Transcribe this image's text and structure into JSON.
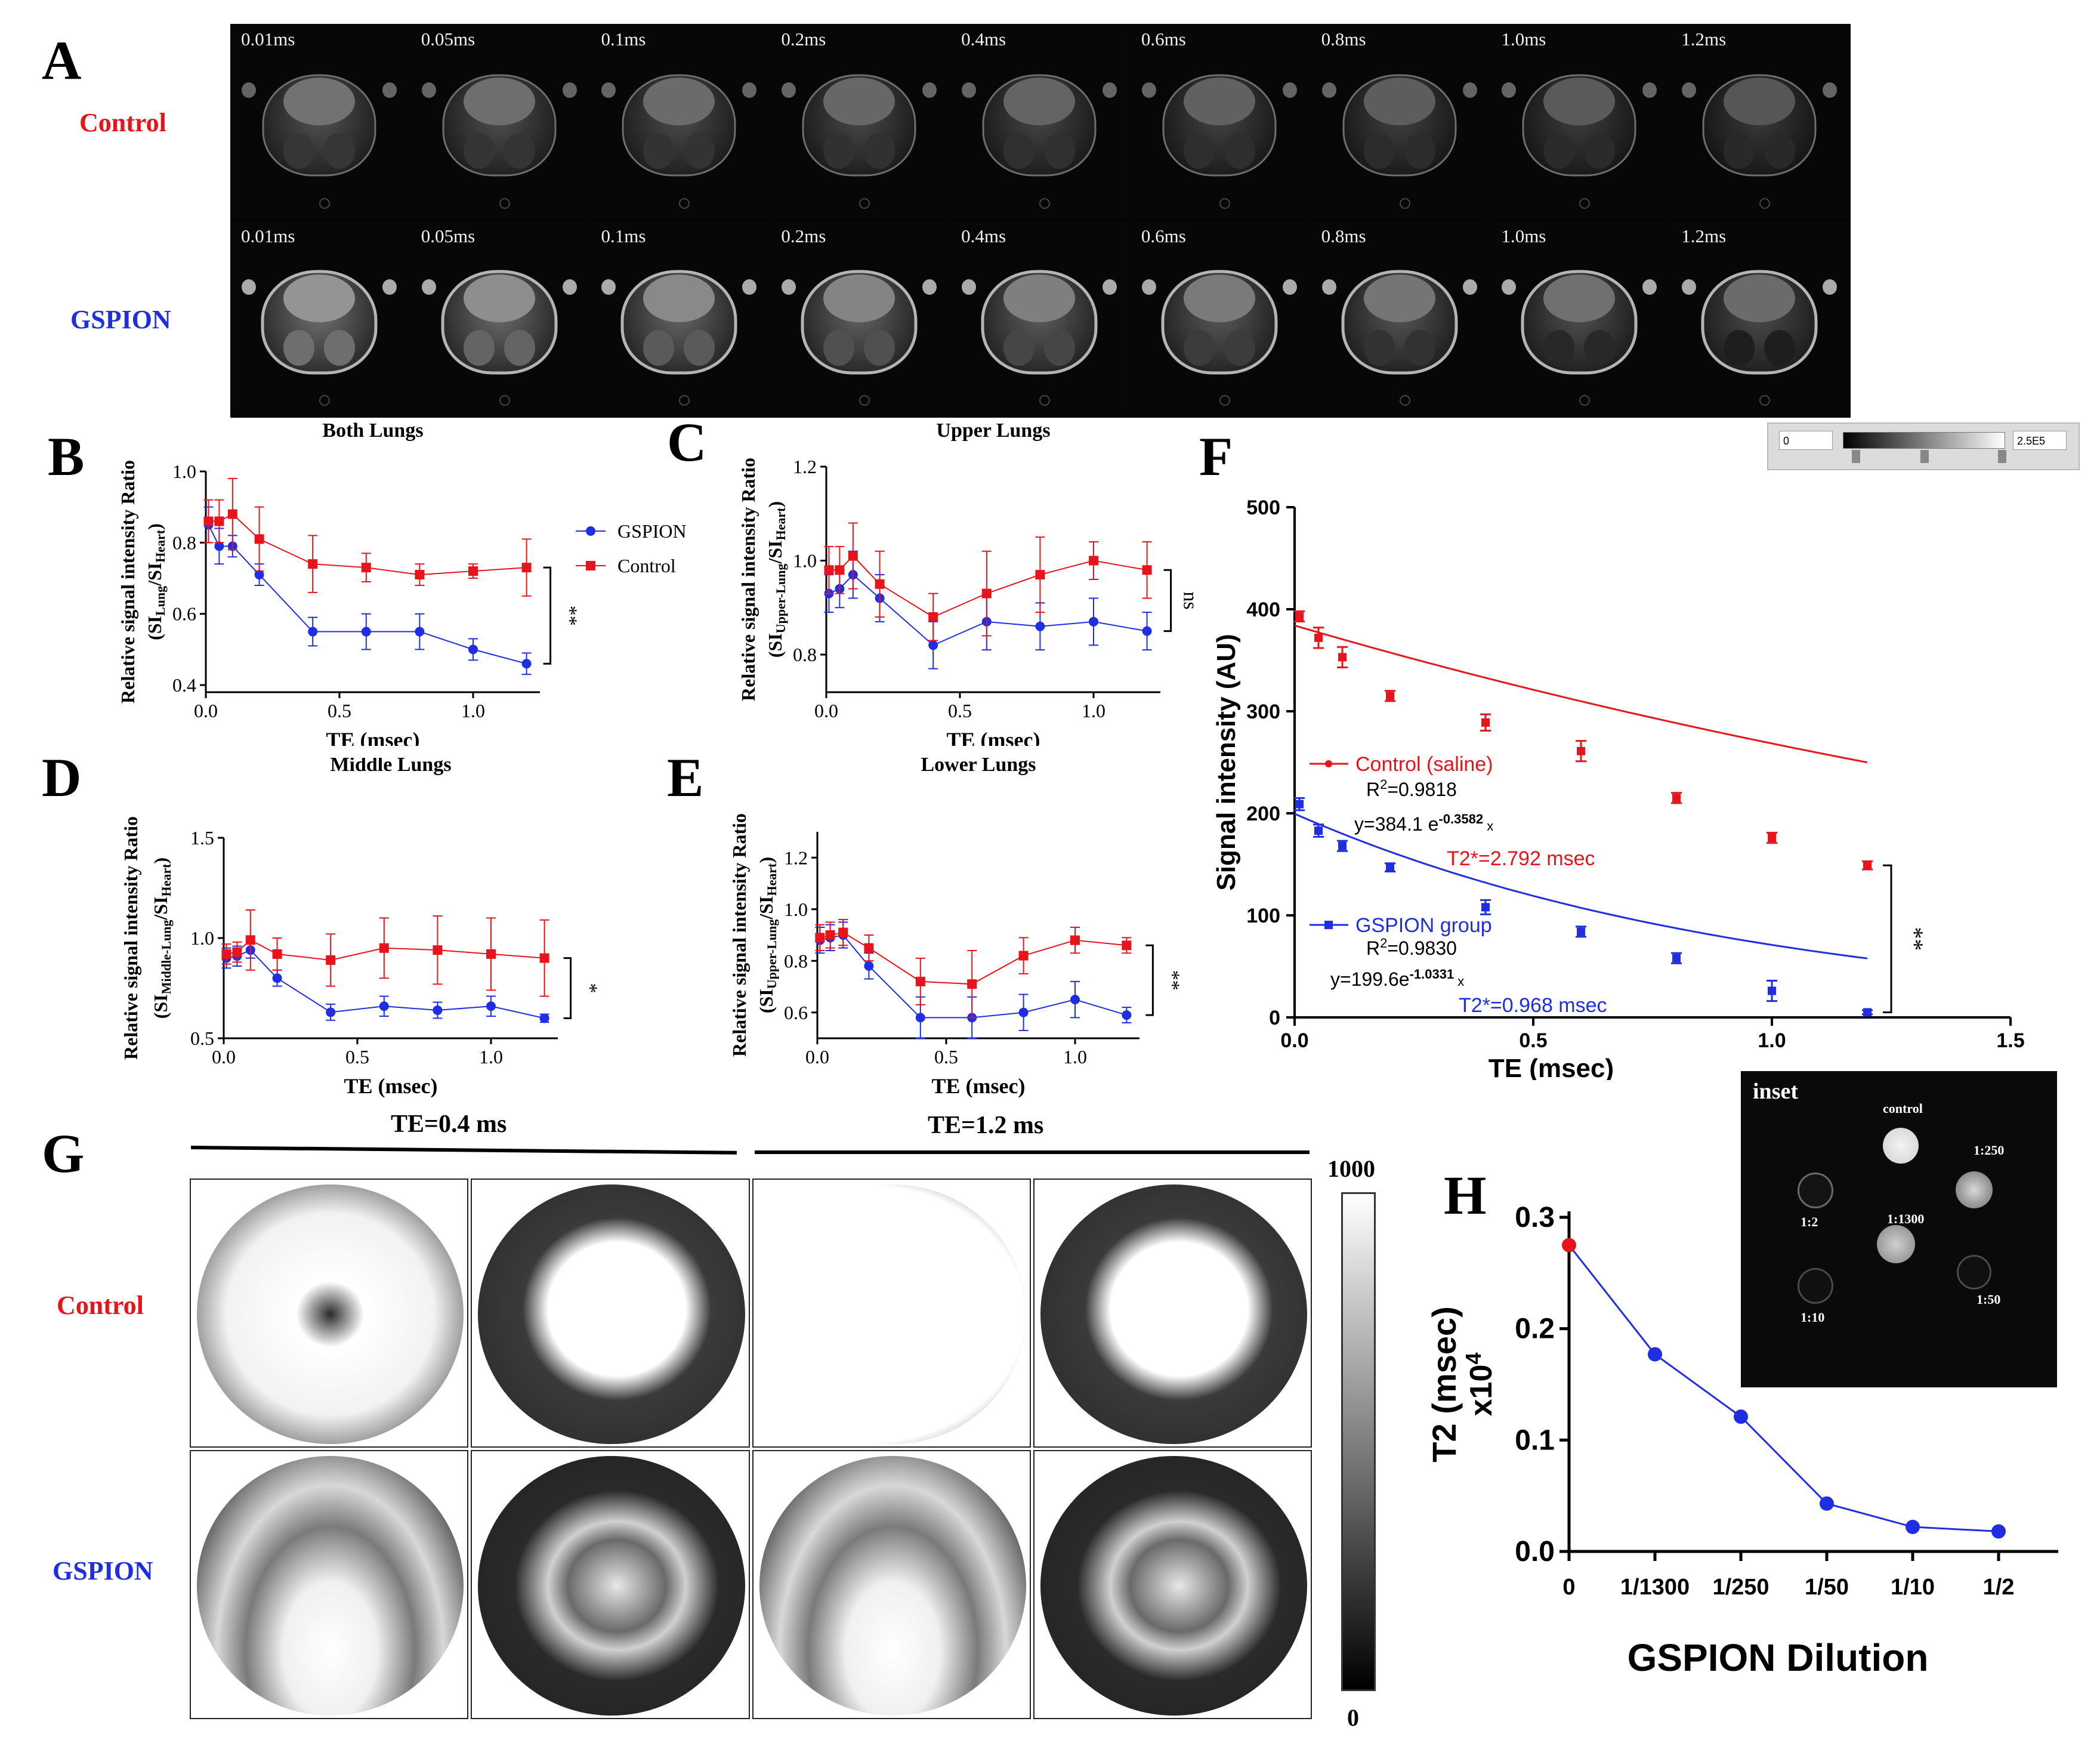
{
  "panel_letters": {
    "A": "A",
    "B": "B",
    "C": "C",
    "D": "D",
    "E": "E",
    "F": "F",
    "G": "G",
    "H": "H"
  },
  "panelA": {
    "row_labels": [
      "Control",
      "GSPION"
    ],
    "row_label_colors": [
      "#e8141c",
      "#1f2ee0"
    ],
    "te_labels": [
      "0.01ms",
      "0.05ms",
      "0.1ms",
      "0.2ms",
      "0.4ms",
      "0.6ms",
      "0.8ms",
      "1.0ms",
      "1.2ms"
    ]
  },
  "colorbar_A": {
    "min": "0",
    "max": "2.5E5"
  },
  "chart_data": [
    {
      "id": "B",
      "type": "line",
      "title": "Both Lungs",
      "xlabel": "TE (msec)",
      "ylabel_main": "Relative signal intensity Ratio",
      "ylabel_sub": "(SI",
      "ylabel_sub1": "Lung",
      "ylabel_mid": "/SI",
      "ylabel_sub2": "Heart",
      "ylabel_end": ")",
      "xlim": [
        0,
        1.25
      ],
      "ylim": [
        0.38,
        1.0
      ],
      "xticks": [
        "0.0",
        "0.5",
        "1.0"
      ],
      "yticks": [
        "0.4",
        "0.6",
        "0.8",
        "1.0"
      ],
      "x": [
        0.01,
        0.05,
        0.1,
        0.2,
        0.4,
        0.6,
        0.8,
        1.0,
        1.2
      ],
      "series": [
        {
          "name": "GSPION",
          "color": "#1f2ee0",
          "marker": "circle",
          "values": [
            0.85,
            0.79,
            0.79,
            0.71,
            0.55,
            0.55,
            0.55,
            0.5,
            0.46
          ],
          "err": [
            0.05,
            0.05,
            0.03,
            0.03,
            0.04,
            0.05,
            0.05,
            0.03,
            0.03
          ]
        },
        {
          "name": "Control",
          "color": "#e8141c",
          "marker": "square",
          "values": [
            0.86,
            0.86,
            0.88,
            0.81,
            0.74,
            0.73,
            0.71,
            0.72,
            0.73
          ],
          "err": [
            0.06,
            0.06,
            0.1,
            0.09,
            0.08,
            0.04,
            0.03,
            0.02,
            0.08
          ]
        }
      ],
      "significance": "**",
      "legend": [
        "GSPION",
        "Control"
      ]
    },
    {
      "id": "C",
      "type": "line",
      "title": "Upper Lungs",
      "xlabel": "TE (msec)",
      "ylabel_main": "Relative signal intensity Ratio",
      "ylabel_sub": "(SI",
      "ylabel_sub1": "Upper-Lung",
      "ylabel_mid": "/SI",
      "ylabel_sub2": "Heart",
      "ylabel_end": ")",
      "xlim": [
        0,
        1.25
      ],
      "ylim": [
        0.72,
        1.2
      ],
      "xticks": [
        "0.0",
        "0.5",
        "1.0"
      ],
      "yticks": [
        "0.8",
        "1.0",
        "1.2"
      ],
      "x": [
        0.01,
        0.05,
        0.1,
        0.2,
        0.4,
        0.6,
        0.8,
        1.0,
        1.2
      ],
      "series": [
        {
          "name": "GSPION",
          "color": "#1f2ee0",
          "marker": "circle",
          "values": [
            0.93,
            0.94,
            0.97,
            0.92,
            0.82,
            0.87,
            0.86,
            0.87,
            0.85
          ],
          "err": [
            0.04,
            0.04,
            0.05,
            0.05,
            0.05,
            0.06,
            0.05,
            0.05,
            0.04
          ]
        },
        {
          "name": "Control",
          "color": "#e8141c",
          "marker": "square",
          "values": [
            0.98,
            0.98,
            1.01,
            0.95,
            0.88,
            0.93,
            0.97,
            1.0,
            0.98
          ],
          "err": [
            0.05,
            0.05,
            0.07,
            0.07,
            0.05,
            0.09,
            0.08,
            0.04,
            0.06
          ]
        }
      ],
      "significance": "ns"
    },
    {
      "id": "D",
      "type": "line",
      "title": "Middle Lungs",
      "xlabel": "TE (msec)",
      "ylabel_main": "Relative signal intensity Ratio",
      "ylabel_sub": "(SI",
      "ylabel_sub1": "Middle-Lung",
      "ylabel_mid": "/SI",
      "ylabel_sub2": "Heart",
      "ylabel_end": ")",
      "xlim": [
        0,
        1.25
      ],
      "ylim": [
        0.5,
        1.5
      ],
      "xticks": [
        "0.0",
        "0.5",
        "1.0"
      ],
      "yticks": [
        "0.5",
        "1.0",
        "1.5"
      ],
      "x": [
        0.01,
        0.05,
        0.1,
        0.2,
        0.4,
        0.6,
        0.8,
        1.0,
        1.2
      ],
      "series": [
        {
          "name": "GSPION",
          "color": "#1f2ee0",
          "marker": "circle",
          "values": [
            0.9,
            0.91,
            0.94,
            0.8,
            0.63,
            0.66,
            0.64,
            0.66,
            0.6
          ],
          "err": [
            0.05,
            0.05,
            0.04,
            0.04,
            0.04,
            0.05,
            0.04,
            0.05,
            0.02
          ]
        },
        {
          "name": "Control",
          "color": "#e8141c",
          "marker": "square",
          "values": [
            0.92,
            0.93,
            0.99,
            0.92,
            0.89,
            0.95,
            0.94,
            0.92,
            0.9
          ],
          "err": [
            0.05,
            0.05,
            0.15,
            0.08,
            0.13,
            0.15,
            0.17,
            0.18,
            0.19
          ]
        }
      ],
      "significance": "*"
    },
    {
      "id": "E",
      "type": "line",
      "title": "Lower Lungs",
      "xlabel": "TE (msec)",
      "ylabel_main": "Relative signal intensity Ratio",
      "ylabel_sub": "(SI",
      "ylabel_sub1": "Upper-Lung",
      "ylabel_mid": "/SI",
      "ylabel_sub2": "Heart",
      "ylabel_end": ")",
      "xlim": [
        0,
        1.25
      ],
      "ylim": [
        0.5,
        1.3
      ],
      "xticks": [
        "0.0",
        "0.5",
        "1.0"
      ],
      "yticks": [
        "0.6",
        "0.8",
        "1.0",
        "1.2"
      ],
      "x": [
        0.01,
        0.05,
        0.1,
        0.2,
        0.4,
        0.6,
        0.8,
        1.0,
        1.2
      ],
      "series": [
        {
          "name": "GSPION",
          "color": "#1f2ee0",
          "marker": "circle",
          "values": [
            0.88,
            0.89,
            0.9,
            0.78,
            0.58,
            0.58,
            0.6,
            0.65,
            0.59
          ],
          "err": [
            0.05,
            0.05,
            0.05,
            0.05,
            0.08,
            0.08,
            0.07,
            0.07,
            0.03
          ]
        },
        {
          "name": "Control",
          "color": "#e8141c",
          "marker": "square",
          "values": [
            0.89,
            0.9,
            0.91,
            0.85,
            0.72,
            0.71,
            0.82,
            0.88,
            0.86
          ],
          "err": [
            0.05,
            0.05,
            0.05,
            0.05,
            0.09,
            0.13,
            0.07,
            0.05,
            0.03
          ]
        }
      ],
      "significance": "**"
    },
    {
      "id": "F",
      "type": "scatter",
      "xlabel": "TE (msec)",
      "ylabel": "Signal intensity (AU)",
      "xlim": [
        0,
        1.5
      ],
      "ylim": [
        0,
        500
      ],
      "xticks": [
        "0.0",
        "0.5",
        "1.0",
        "1.5"
      ],
      "yticks": [
        "0",
        "100",
        "200",
        "300",
        "400",
        "500"
      ],
      "x": [
        0.01,
        0.05,
        0.1,
        0.2,
        0.4,
        0.6,
        0.8,
        1.0,
        1.2
      ],
      "series": [
        {
          "name": "Control (saline)",
          "color": "#e8141c",
          "values": [
            393,
            372,
            353,
            315,
            289,
            261,
            215,
            176,
            149
          ],
          "err": [
            5,
            10,
            10,
            5,
            8,
            10,
            5,
            5,
            4
          ],
          "fit_a": 384.1,
          "fit_k": 0.3582
        },
        {
          "name": "GSPION group",
          "color": "#1f2ee0",
          "values": [
            209,
            183,
            168,
            147,
            108,
            84,
            58,
            26,
            5
          ],
          "err": [
            6,
            6,
            5,
            4,
            7,
            5,
            5,
            10,
            2
          ],
          "fit_a": 199.6,
          "fit_k": 1.0331
        }
      ],
      "ann": {
        "ctrl_r2_pre": "R",
        "ctrl_r2_sup": "2",
        "ctrl_r2_val": "=0.9818",
        "ctrl_eq_pre": "y=384.1 e",
        "ctrl_eq_sup": "-0.3582",
        "ctrl_eq_x": " x",
        "ctrl_t2": "T2*=2.792 msec",
        "gsp_r2_pre": "R",
        "gsp_r2_sup": "2",
        "gsp_r2_val": "=0.9830",
        "gsp_eq_pre": "y=199.6e",
        "gsp_eq_sup": "-1.0331",
        "gsp_eq_x": " x",
        "gsp_t2": "T2*=0.968 msec"
      },
      "significance": "**"
    },
    {
      "id": "H",
      "type": "line",
      "xlabel": "GSPION  Dilution",
      "ylabel": "T2 (msec)",
      "ylabel2": "x10",
      "ylabel2_sup": "4",
      "ylim": [
        0,
        0.3
      ],
      "categories": [
        "0",
        "1/1300",
        "1/250",
        "1/50",
        "1/10",
        "1/2"
      ],
      "yticks": [
        "0.0",
        "0.1",
        "0.2",
        "0.3"
      ],
      "values": [
        0.275,
        0.177,
        0.121,
        0.043,
        0.022,
        0.018
      ],
      "color": "#1f2ee0",
      "first_point_color": "#e8141c"
    }
  ],
  "panelG": {
    "col_headers": [
      "TE=0.4 ms",
      "TE=1.2 ms"
    ],
    "row_labels": [
      "Control",
      "GSPION"
    ],
    "colorbar_max": "1000",
    "colorbar_min": "0"
  },
  "inset": {
    "title": "inset",
    "labels": [
      "control",
      "1:250",
      "1:2",
      "1:1300",
      "1:10",
      "1:50"
    ]
  }
}
